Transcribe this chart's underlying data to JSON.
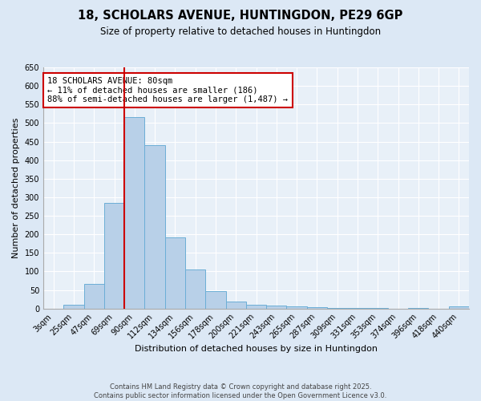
{
  "title_line1": "18, SCHOLARS AVENUE, HUNTINGDON, PE29 6GP",
  "title_line2": "Size of property relative to detached houses in Huntingdon",
  "xlabel": "Distribution of detached houses by size in Huntingdon",
  "ylabel": "Number of detached properties",
  "categories": [
    "3sqm",
    "25sqm",
    "47sqm",
    "69sqm",
    "90sqm",
    "112sqm",
    "134sqm",
    "156sqm",
    "178sqm",
    "200sqm",
    "221sqm",
    "243sqm",
    "265sqm",
    "287sqm",
    "309sqm",
    "331sqm",
    "353sqm",
    "374sqm",
    "396sqm",
    "418sqm",
    "440sqm"
  ],
  "values": [
    0,
    10,
    67,
    285,
    515,
    440,
    192,
    106,
    46,
    19,
    10,
    9,
    5,
    4,
    2,
    1,
    1,
    0,
    1,
    0,
    5
  ],
  "bar_color": "#b8d0e8",
  "bar_edge_color": "#6baed6",
  "vline_color": "#cc0000",
  "annotation_text": "18 SCHOLARS AVENUE: 80sqm\n← 11% of detached houses are smaller (186)\n88% of semi-detached houses are larger (1,487) →",
  "annotation_box_color": "#ffffff",
  "annotation_box_edge": "#cc0000",
  "ylim": [
    0,
    650
  ],
  "yticks": [
    0,
    50,
    100,
    150,
    200,
    250,
    300,
    350,
    400,
    450,
    500,
    550,
    600,
    650
  ],
  "footer_line1": "Contains HM Land Registry data © Crown copyright and database right 2025.",
  "footer_line2": "Contains public sector information licensed under the Open Government Licence v3.0.",
  "bg_color": "#dce8f5",
  "plot_bg_color": "#e8f0f8",
  "grid_color": "#ffffff",
  "title_fontsize": 10.5,
  "subtitle_fontsize": 8.5,
  "tick_fontsize": 7,
  "ylabel_fontsize": 8,
  "xlabel_fontsize": 8,
  "annotation_fontsize": 7.5,
  "footer_fontsize": 6
}
